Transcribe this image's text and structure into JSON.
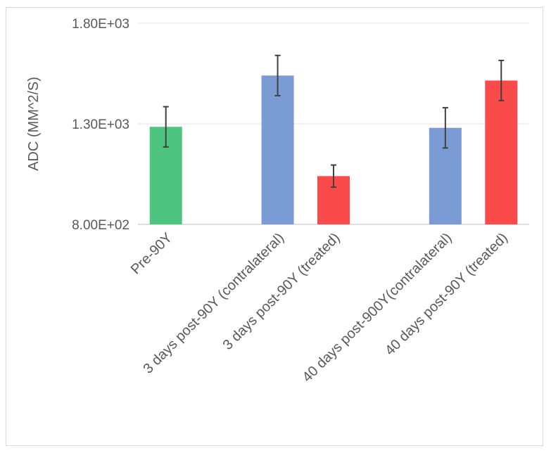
{
  "chart_data": {
    "type": "bar",
    "title": "",
    "xlabel": "",
    "ylabel": "ADC (MM^2/S)",
    "ylim": [
      800,
      1800
    ],
    "yticks": [
      800,
      1300,
      1800
    ],
    "ytick_labels": [
      "8.00E+02",
      "1.30E+03",
      "1.80E+03"
    ],
    "grid": true,
    "legend": "none",
    "categories": [
      "Pre-90Y",
      "",
      "3 days post-90Y (contralateral)",
      "3 days post-90Y (treated)",
      "",
      "40 days post-900Y(contralateral)",
      "40 days post-90Y (treated)"
    ],
    "values": [
      1285,
      null,
      1540,
      1040,
      null,
      1280,
      1515
    ],
    "errors": [
      100,
      null,
      100,
      55,
      null,
      100,
      100
    ],
    "colors": [
      "#4dc581",
      null,
      "#7b9bd4",
      "#fb4a4a",
      null,
      "#7b9bd4",
      "#fb4a4a"
    ],
    "error_color": "#404040"
  }
}
